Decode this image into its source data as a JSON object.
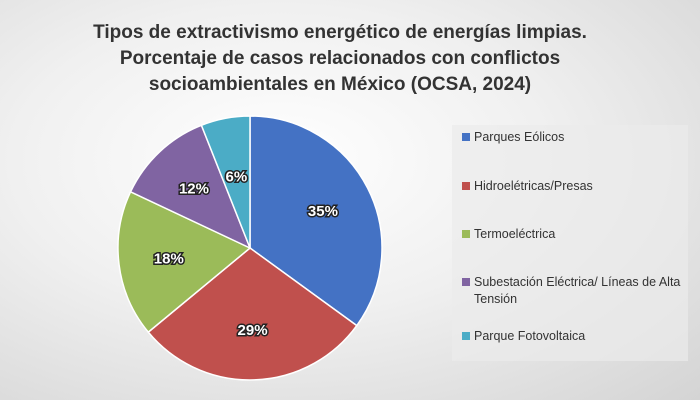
{
  "chart_data": {
    "type": "pie",
    "title": [
      "Tipos de extractivismo energético de energías limpias.",
      "Porcentaje de casos relacionados con conflictos",
      "socioambientales en México (OCSA, 2024)"
    ],
    "categories": [
      "Parques Eólicos",
      "Hidroelétricas/Presas",
      "Termoeléctrica",
      "Subestación Eléctrica/ Líneas de Alta Tensión",
      "Parque Fotovoltaica"
    ],
    "values": [
      35,
      29,
      18,
      12,
      6
    ],
    "labels": [
      "35%",
      "29%",
      "18%",
      "12%",
      "6%"
    ],
    "colors": [
      "#4472C4",
      "#C0504D",
      "#9BBB59",
      "#8064A2",
      "#4BACC6"
    ],
    "start": "12 o'clock, clockwise",
    "legend": "right"
  }
}
